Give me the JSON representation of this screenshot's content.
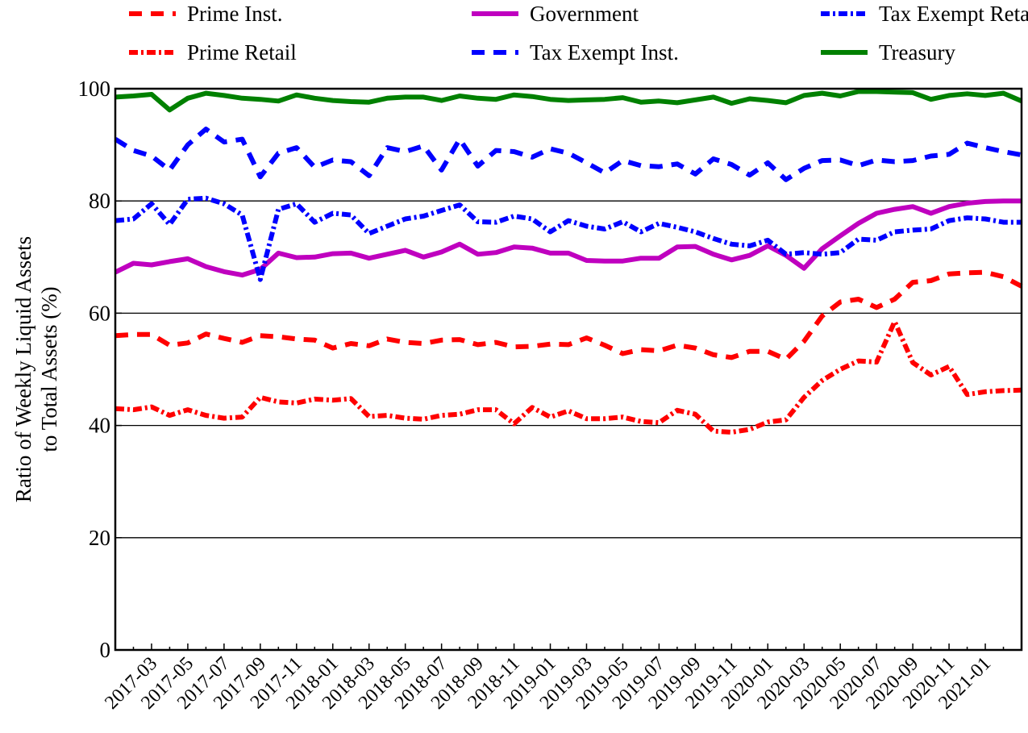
{
  "chart_data": {
    "type": "line",
    "ylabel": [
      "Ratio of Weekly Liquid Assets",
      "to Total Assets (%)"
    ],
    "categories": [
      null,
      null,
      "2017-03",
      null,
      "2017-05",
      null,
      "2017-07",
      null,
      "2017-09",
      null,
      "2017-11",
      null,
      "2018-01",
      null,
      "2018-03",
      null,
      "2018-05",
      null,
      "2018-07",
      null,
      "2018-09",
      null,
      "2018-11",
      null,
      "2019-01",
      null,
      "2019-03",
      null,
      "2019-05",
      null,
      "2019-07",
      null,
      "2019-09",
      null,
      "2019-11",
      null,
      "2020-01",
      null,
      "2020-03",
      null,
      "2020-05",
      null,
      "2020-07",
      null,
      "2020-09",
      null,
      "2020-11",
      null,
      "2021-01",
      null,
      null
    ],
    "ylim": [
      0,
      100
    ],
    "yticks": [
      0,
      20,
      40,
      60,
      80,
      100
    ],
    "grid": true,
    "legend": "top",
    "series": [
      {
        "name": "Prime Inst.",
        "color": "#ff0000",
        "linestyle": "dashed",
        "values": [
          56.0,
          56.2,
          56.2,
          54.3,
          54.7,
          56.3,
          55.5,
          54.8,
          56.0,
          55.8,
          55.4,
          55.2,
          53.8,
          54.6,
          54.2,
          55.4,
          54.8,
          54.6,
          55.2,
          55.3,
          54.4,
          54.8,
          54.0,
          54.1,
          54.5,
          54.4,
          55.6,
          54.3,
          52.8,
          53.5,
          53.3,
          54.3,
          53.8,
          52.6,
          52.1,
          53.2,
          53.2,
          51.8,
          55.0,
          59.5,
          62.0,
          62.5,
          61.0,
          62.5,
          65.5,
          65.8,
          67.0,
          67.2,
          67.3,
          66.5,
          64.8
        ]
      },
      {
        "name": "Prime Retail",
        "color": "#ff0000",
        "linestyle": "dashdot",
        "values": [
          43.0,
          42.8,
          43.3,
          41.8,
          42.8,
          41.8,
          41.3,
          41.5,
          45.0,
          44.2,
          44.0,
          44.7,
          44.5,
          44.8,
          41.6,
          41.8,
          41.3,
          41.1,
          41.8,
          42.0,
          42.8,
          42.8,
          40.3,
          43.2,
          41.5,
          42.6,
          41.2,
          41.2,
          41.5,
          40.7,
          40.5,
          42.7,
          42.0,
          39.0,
          38.8,
          39.3,
          40.6,
          41.0,
          45.0,
          48.0,
          50.0,
          51.5,
          51.3,
          58.5,
          51.2,
          49.0,
          50.5,
          45.5,
          46.0,
          46.2,
          46.3
        ]
      },
      {
        "name": "Government",
        "color": "#bf00bf",
        "linestyle": "solid",
        "values": [
          67.3,
          68.9,
          68.6,
          69.2,
          69.7,
          68.3,
          67.4,
          66.8,
          67.8,
          70.7,
          69.9,
          70.0,
          70.6,
          70.7,
          69.8,
          70.5,
          71.2,
          70.0,
          70.9,
          72.3,
          70.5,
          70.8,
          71.8,
          71.6,
          70.7,
          70.7,
          69.4,
          69.3,
          69.3,
          69.8,
          69.8,
          71.8,
          71.9,
          70.5,
          69.5,
          70.3,
          72.0,
          70.3,
          68.0,
          71.5,
          73.8,
          76.0,
          77.8,
          78.5,
          79.0,
          77.8,
          79.0,
          79.6,
          79.9,
          80.0,
          80.0
        ]
      },
      {
        "name": "Tax Exempt Inst.",
        "color": "#0000ff",
        "linestyle": "dashed",
        "values": [
          91.0,
          89.0,
          88.0,
          85.5,
          90.0,
          92.8,
          90.5,
          91.0,
          84.3,
          88.5,
          89.5,
          86.0,
          87.3,
          87.0,
          84.5,
          89.5,
          88.8,
          89.8,
          85.5,
          91.0,
          86.2,
          89.0,
          88.8,
          87.8,
          89.3,
          88.5,
          86.8,
          85.0,
          87.2,
          86.3,
          86.1,
          86.6,
          84.8,
          87.5,
          86.5,
          84.6,
          86.8,
          83.8,
          85.8,
          87.2,
          87.3,
          86.3,
          87.3,
          87.0,
          87.2,
          88.0,
          88.3,
          90.3,
          89.5,
          88.8,
          88.2
        ]
      },
      {
        "name": "Tax Exempt Retail",
        "color": "#0000ff",
        "linestyle": "dashdot",
        "values": [
          76.5,
          76.8,
          79.5,
          75.8,
          80.3,
          80.5,
          79.5,
          77.5,
          66.0,
          78.5,
          79.5,
          76.2,
          77.8,
          77.5,
          74.2,
          75.5,
          76.8,
          77.3,
          78.3,
          79.3,
          76.3,
          76.2,
          77.3,
          76.8,
          74.5,
          76.5,
          75.5,
          75.0,
          76.3,
          74.5,
          76.0,
          75.3,
          74.5,
          73.3,
          72.3,
          72.0,
          73.0,
          70.5,
          70.8,
          70.5,
          70.8,
          73.2,
          73.0,
          74.5,
          74.8,
          75.0,
          76.5,
          77.0,
          76.8,
          76.2,
          76.2
        ]
      },
      {
        "name": "Treasury",
        "color": "#008000",
        "linestyle": "solid",
        "values": [
          98.5,
          98.7,
          99.0,
          96.2,
          98.3,
          99.2,
          98.8,
          98.3,
          98.1,
          97.8,
          98.9,
          98.3,
          97.9,
          97.7,
          97.6,
          98.3,
          98.5,
          98.5,
          97.9,
          98.7,
          98.3,
          98.1,
          98.9,
          98.6,
          98.1,
          97.9,
          98.0,
          98.1,
          98.4,
          97.6,
          97.8,
          97.5,
          98.0,
          98.5,
          97.4,
          98.2,
          97.9,
          97.5,
          98.8,
          99.2,
          98.7,
          99.5,
          99.5,
          99.4,
          99.3,
          98.1,
          98.8,
          99.1,
          98.8,
          99.2,
          97.8
        ]
      }
    ]
  }
}
